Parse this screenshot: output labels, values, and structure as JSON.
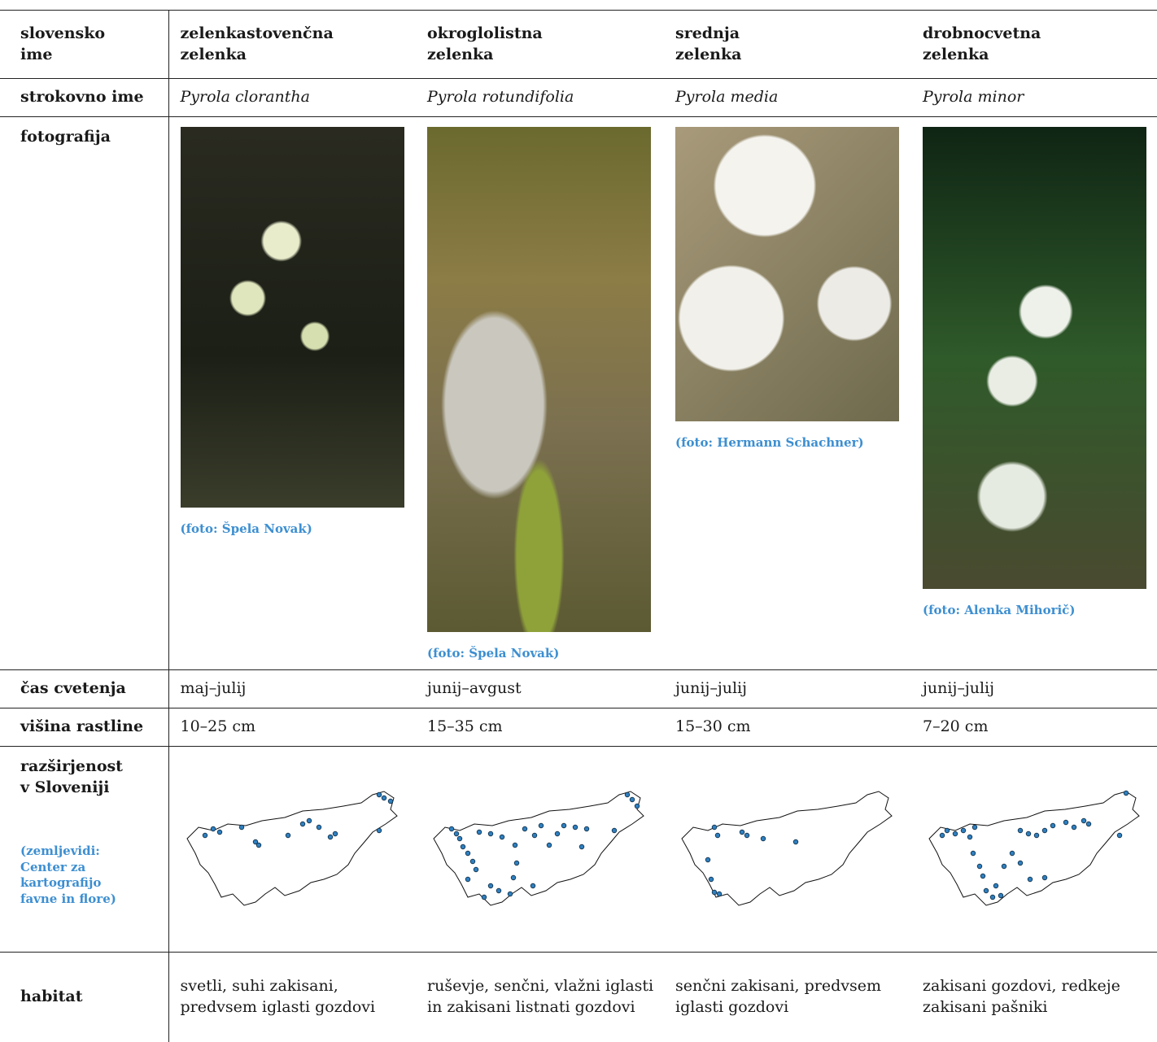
{
  "table": {
    "header": [
      "slovensko ime",
      "zelenkastovenčna zelenka",
      "okroglolistna zelenka",
      "srednja zelenka",
      "drobnocvetna zelenka"
    ],
    "latin": {
      "label": "strokovno ime",
      "cells": [
        "Pyrola clorantha",
        "Pyrola rotundifolia",
        "Pyrola media",
        "Pyrola minor"
      ]
    },
    "photo": {
      "label": "fotografija",
      "credits": [
        "(foto: Špela Novak)",
        "(foto: Špela Novak)",
        "(foto: Hermann Schachner)",
        "(foto: Alenka Mihorič)"
      ]
    },
    "bloom": {
      "label": "čas cvetenja",
      "cells": [
        "maj–julij",
        "junij–avgust",
        "junij–julij",
        "junij–julij"
      ]
    },
    "height": {
      "label": "višina rastline",
      "cells": [
        "10–25 cm",
        "15–35 cm",
        "15–30 cm",
        "7–20 cm"
      ]
    },
    "distribution": {
      "label": [
        "razširjenost",
        "v Sloveniji"
      ],
      "note": "(zemljevidi: Center za kartografijo favne in flore)"
    },
    "habitat": {
      "label": "habitat",
      "cells": [
        "svetli, suhi zakisani, predvsem iglasti gozdovi",
        "ruševje, senčni, vlažni iglasti in zakisani listnati gozdovi",
        "senčni zakisani, predvsem iglasti gozdovi",
        "zakisani gozdovi, redkeje zakisani pašniki"
      ]
    }
  }
}
